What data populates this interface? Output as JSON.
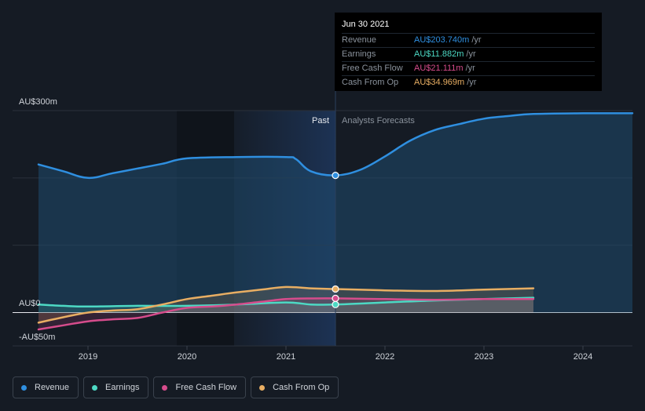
{
  "chart_data": {
    "type": "line",
    "y_labels": [
      "AU$300m",
      "AU$0",
      "-AU$50m"
    ],
    "x_ticks": [
      "2019",
      "2020",
      "2021",
      "2022",
      "2023",
      "2024"
    ],
    "ylim": [
      -50,
      300
    ],
    "grid": true,
    "divider": {
      "past_label": "Past",
      "forecast_label": "Analysts Forecasts",
      "date": 2021.5
    },
    "series": [
      {
        "name": "Revenue",
        "color": "#2f8fe0",
        "points": [
          [
            2018.5,
            220
          ],
          [
            2018.75,
            210
          ],
          [
            2019.0,
            200
          ],
          [
            2019.25,
            207
          ],
          [
            2019.5,
            214
          ],
          [
            2019.75,
            221
          ],
          [
            2020.0,
            229
          ],
          [
            2020.5,
            231
          ],
          [
            2021.0,
            231
          ],
          [
            2021.1,
            228
          ],
          [
            2021.25,
            210
          ],
          [
            2021.5,
            203.74
          ],
          [
            2021.75,
            212
          ],
          [
            2022.0,
            232
          ],
          [
            2022.25,
            255
          ],
          [
            2022.5,
            271
          ],
          [
            2022.75,
            280
          ],
          [
            2023.0,
            288
          ],
          [
            2023.25,
            292
          ],
          [
            2023.5,
            295
          ],
          [
            2024.0,
            296
          ],
          [
            2024.5,
            296
          ]
        ]
      },
      {
        "name": "Earnings",
        "color": "#4dd9c4",
        "points": [
          [
            2018.5,
            12
          ],
          [
            2018.75,
            10
          ],
          [
            2019.0,
            9
          ],
          [
            2019.5,
            10
          ],
          [
            2020.0,
            10
          ],
          [
            2020.5,
            12
          ],
          [
            2021.0,
            15
          ],
          [
            2021.25,
            12
          ],
          [
            2021.5,
            11.882
          ],
          [
            2022.0,
            15
          ],
          [
            2022.5,
            18
          ],
          [
            2023.0,
            20
          ],
          [
            2023.5,
            22
          ]
        ]
      },
      {
        "name": "Free Cash Flow",
        "color": "#d64c8c",
        "points": [
          [
            2018.5,
            -25
          ],
          [
            2018.75,
            -19
          ],
          [
            2019.0,
            -13
          ],
          [
            2019.25,
            -10
          ],
          [
            2019.5,
            -8
          ],
          [
            2019.75,
            0
          ],
          [
            2020.0,
            7
          ],
          [
            2020.25,
            9
          ],
          [
            2020.5,
            12
          ],
          [
            2020.75,
            16
          ],
          [
            2021.0,
            20
          ],
          [
            2021.25,
            21
          ],
          [
            2021.5,
            21.111
          ],
          [
            2022.0,
            20
          ],
          [
            2022.5,
            19
          ],
          [
            2023.0,
            20
          ],
          [
            2023.5,
            20
          ]
        ]
      },
      {
        "name": "Cash From Op",
        "color": "#e8ae63",
        "points": [
          [
            2018.5,
            -15
          ],
          [
            2018.75,
            -7
          ],
          [
            2019.0,
            0
          ],
          [
            2019.25,
            3
          ],
          [
            2019.5,
            5
          ],
          [
            2019.75,
            12
          ],
          [
            2020.0,
            20
          ],
          [
            2020.25,
            25
          ],
          [
            2020.5,
            30
          ],
          [
            2020.75,
            34
          ],
          [
            2021.0,
            38
          ],
          [
            2021.25,
            36
          ],
          [
            2021.5,
            34.969
          ],
          [
            2022.0,
            33
          ],
          [
            2022.5,
            32
          ],
          [
            2023.0,
            34
          ],
          [
            2023.5,
            36
          ]
        ]
      }
    ],
    "highlight": {
      "date": 2021.5
    }
  },
  "tooltip": {
    "date": "Jun 30 2021",
    "rows": [
      {
        "label": "Revenue",
        "value": "AU$203.740m",
        "unit": "/yr",
        "color": "#2f8fe0"
      },
      {
        "label": "Earnings",
        "value": "AU$11.882m",
        "unit": "/yr",
        "color": "#4dd9c4"
      },
      {
        "label": "Free Cash Flow",
        "value": "AU$21.111m",
        "unit": "/yr",
        "color": "#d64c8c"
      },
      {
        "label": "Cash From Op",
        "value": "AU$34.969m",
        "unit": "/yr",
        "color": "#e8ae63"
      }
    ]
  },
  "legend": [
    {
      "label": "Revenue",
      "color": "#2f8fe0"
    },
    {
      "label": "Earnings",
      "color": "#4dd9c4"
    },
    {
      "label": "Free Cash Flow",
      "color": "#d64c8c"
    },
    {
      "label": "Cash From Op",
      "color": "#e8ae63"
    }
  ]
}
